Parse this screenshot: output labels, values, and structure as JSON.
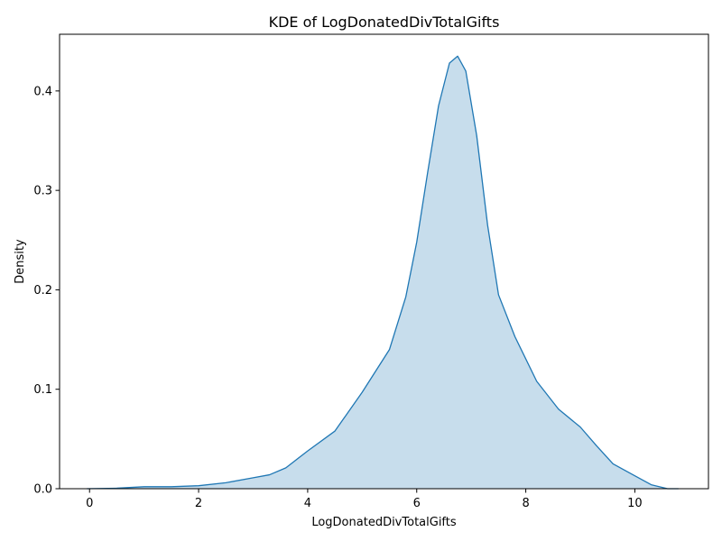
{
  "chart_data": {
    "type": "area",
    "title": "KDE of LogDonatedDivTotalGifts",
    "xlabel": "LogDonatedDivTotalGifts",
    "ylabel": "Density",
    "xlim": [
      -0.55,
      11.35
    ],
    "ylim": [
      0,
      0.457
    ],
    "xticks": [
      0,
      2,
      4,
      6,
      8,
      10
    ],
    "xtick_labels": [
      "0",
      "2",
      "4",
      "6",
      "8",
      "10"
    ],
    "yticks": [
      0.0,
      0.1,
      0.2,
      0.3,
      0.4
    ],
    "ytick_labels": [
      "0.0",
      "0.1",
      "0.2",
      "0.3",
      "0.4"
    ],
    "grid": false,
    "series": [
      {
        "line_color": "#1f77b4",
        "fill_color": "#1f77b4",
        "fill_opacity": 0.25,
        "x": [
          -0.05,
          0.5,
          1.0,
          1.5,
          2.0,
          2.5,
          3.0,
          3.3,
          3.6,
          4.0,
          4.5,
          5.0,
          5.5,
          5.8,
          6.0,
          6.2,
          6.4,
          6.6,
          6.75,
          6.9,
          7.1,
          7.3,
          7.5,
          7.8,
          8.2,
          8.6,
          9.0,
          9.3,
          9.6,
          10.0,
          10.3,
          10.6,
          10.8
        ],
        "y": [
          0.0,
          0.0005,
          0.002,
          0.002,
          0.003,
          0.006,
          0.011,
          0.014,
          0.021,
          0.038,
          0.058,
          0.097,
          0.14,
          0.193,
          0.248,
          0.318,
          0.385,
          0.428,
          0.435,
          0.42,
          0.355,
          0.265,
          0.195,
          0.153,
          0.108,
          0.08,
          0.062,
          0.043,
          0.025,
          0.013,
          0.004,
          0.0,
          0.0
        ]
      }
    ]
  }
}
